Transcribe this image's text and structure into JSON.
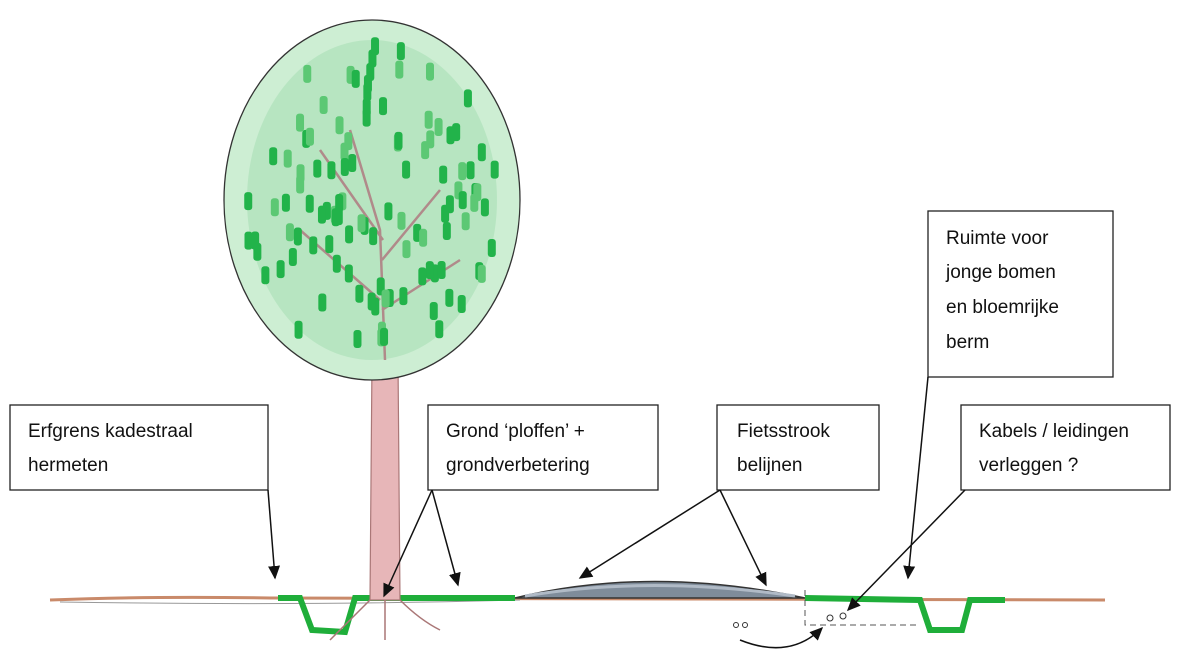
{
  "labels": [
    {
      "lines": [
        "Erfgrens kadestraal",
        "hermeten"
      ]
    },
    {
      "lines": [
        "Grond ‘ploffen’ +",
        "grondverbetering"
      ]
    },
    {
      "lines": [
        "Fietsstrook",
        "belijnen"
      ]
    },
    {
      "lines": [
        "Kabels / leidingen",
        "verleggen ?"
      ]
    },
    {
      "lines": [
        "Ruimte voor",
        "jonge bomen",
        "en bloemrijke",
        "berm"
      ]
    }
  ]
}
